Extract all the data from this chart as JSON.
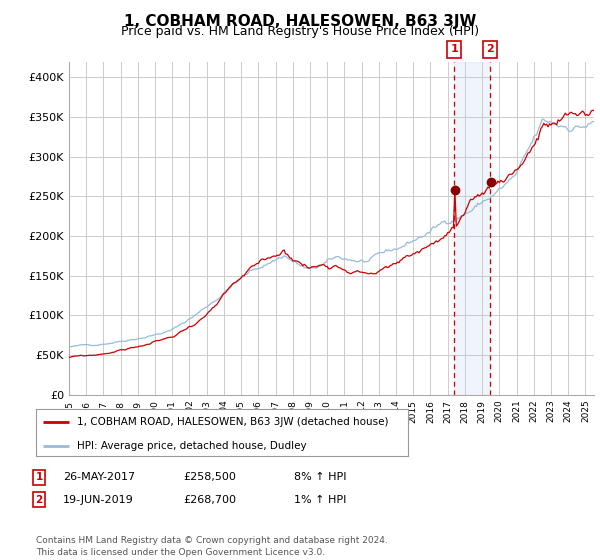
{
  "title": "1, COBHAM ROAD, HALESOWEN, B63 3JW",
  "subtitle": "Price paid vs. HM Land Registry's House Price Index (HPI)",
  "title_fontsize": 11,
  "subtitle_fontsize": 9,
  "background_color": "#ffffff",
  "plot_bg_color": "#ffffff",
  "grid_color": "#cccccc",
  "red_line_color": "#cc0000",
  "blue_line_color": "#99bbdd",
  "sale1_date_num": 2017.38,
  "sale2_date_num": 2019.46,
  "sale1_price": 258500,
  "sale2_price": 268700,
  "ylim": [
    0,
    420000
  ],
  "xlim_start": 1995,
  "xlim_end": 2025.5,
  "legend_red_label": "1, COBHAM ROAD, HALESOWEN, B63 3JW (detached house)",
  "legend_blue_label": "HPI: Average price, detached house, Dudley",
  "table_row1": [
    "1",
    "26-MAY-2017",
    "£258,500",
    "8% ↑ HPI"
  ],
  "table_row2": [
    "2",
    "19-JUN-2019",
    "£268,700",
    "1% ↑ HPI"
  ],
  "footer": "Contains HM Land Registry data © Crown copyright and database right 2024.\nThis data is licensed under the Open Government Licence v3.0.",
  "yticks": [
    0,
    50000,
    100000,
    150000,
    200000,
    250000,
    300000,
    350000,
    400000
  ],
  "ytick_labels": [
    "£0",
    "£50K",
    "£100K",
    "£150K",
    "£200K",
    "£250K",
    "£300K",
    "£350K",
    "£400K"
  ]
}
